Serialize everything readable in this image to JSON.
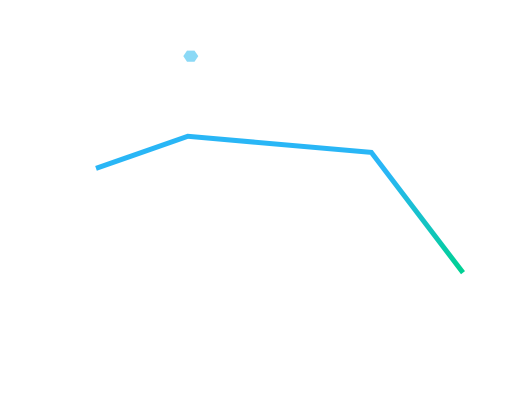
{
  "chart_data": {
    "type": "line",
    "title": "",
    "xlabel": "",
    "ylabel": "",
    "x": [
      0,
      1,
      3,
      4
    ],
    "series": [
      {
        "values": [
          5.8,
          6.6,
          6.2,
          3.2
        ]
      }
    ],
    "xlim": [
      0,
      4
    ],
    "ylim": [
      0,
      10
    ],
    "grid": false,
    "legend": "none",
    "colors": {
      "gradient_start": "#29B6F6",
      "gradient_end": "#00D094",
      "marker": "#8BD9F6"
    },
    "marker": {
      "x": 1,
      "y": 8.6,
      "shape": "hexagon"
    }
  }
}
